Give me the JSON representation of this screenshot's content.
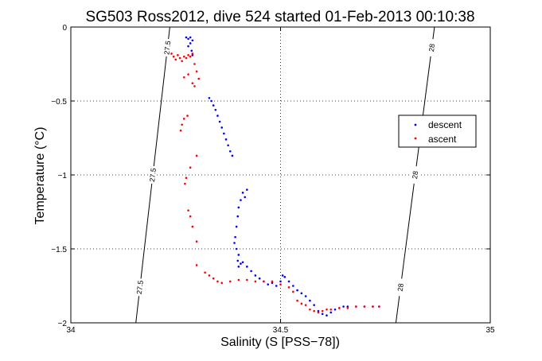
{
  "chart_data": {
    "type": "scatter",
    "title": "SG503 Ross2012, dive 524 started 01-Feb-2013 00:10:38",
    "xlabel": "Salinity (S [PSS−78])",
    "ylabel": "Temperature (°C)",
    "xlim": [
      34,
      35
    ],
    "ylim": [
      -2,
      0
    ],
    "y_reversed": false,
    "grid": true,
    "x_ticks": [
      34,
      34.5,
      35
    ],
    "x_tick_labels": [
      "34",
      "34.5",
      "35"
    ],
    "y_ticks": [
      0,
      -0.5,
      -1,
      -1.5,
      -2
    ],
    "y_tick_labels": [
      "0",
      "−0.5",
      "−1",
      "−1.5",
      "−2"
    ],
    "legend": {
      "position": "right",
      "entries": [
        "descent",
        "ascent"
      ]
    },
    "series": [
      {
        "name": "descent",
        "color": "#0000ff",
        "points": [
          [
            34.275,
            -0.07
          ],
          [
            34.28,
            -0.08
          ],
          [
            34.285,
            -0.07
          ],
          [
            34.29,
            -0.09
          ],
          [
            34.285,
            -0.11
          ],
          [
            34.28,
            -0.13
          ],
          [
            34.288,
            -0.16
          ],
          [
            34.29,
            -0.19
          ],
          [
            34.33,
            -0.48
          ],
          [
            34.335,
            -0.5
          ],
          [
            34.34,
            -0.53
          ],
          [
            34.345,
            -0.56
          ],
          [
            34.35,
            -0.6
          ],
          [
            34.355,
            -0.64
          ],
          [
            34.36,
            -0.68
          ],
          [
            34.365,
            -0.72
          ],
          [
            34.37,
            -0.76
          ],
          [
            34.375,
            -0.8
          ],
          [
            34.38,
            -0.84
          ],
          [
            34.385,
            -0.87
          ],
          [
            34.42,
            -1.1
          ],
          [
            34.415,
            -1.15
          ],
          [
            34.41,
            -1.12
          ],
          [
            34.405,
            -1.17
          ],
          [
            34.4,
            -1.22
          ],
          [
            34.398,
            -1.28
          ],
          [
            34.395,
            -1.35
          ],
          [
            34.392,
            -1.42
          ],
          [
            34.39,
            -1.46
          ],
          [
            34.395,
            -1.5
          ],
          [
            34.4,
            -1.54
          ],
          [
            34.398,
            -1.58
          ],
          [
            34.4,
            -1.62
          ],
          [
            34.405,
            -1.6
          ],
          [
            34.41,
            -1.59
          ],
          [
            34.42,
            -1.62
          ],
          [
            34.43,
            -1.65
          ],
          [
            34.44,
            -1.68
          ],
          [
            34.45,
            -1.7
          ],
          [
            34.46,
            -1.72
          ],
          [
            34.47,
            -1.74
          ],
          [
            34.48,
            -1.73
          ],
          [
            34.49,
            -1.75
          ],
          [
            34.5,
            -1.72
          ],
          [
            34.505,
            -1.68
          ],
          [
            34.51,
            -1.69
          ],
          [
            34.52,
            -1.72
          ],
          [
            34.53,
            -1.75
          ],
          [
            34.54,
            -1.78
          ],
          [
            34.55,
            -1.8
          ],
          [
            34.56,
            -1.82
          ],
          [
            34.57,
            -1.85
          ],
          [
            34.58,
            -1.88
          ],
          [
            34.59,
            -1.92
          ],
          [
            34.6,
            -1.94
          ],
          [
            34.61,
            -1.95
          ],
          [
            34.62,
            -1.93
          ],
          [
            34.63,
            -1.91
          ],
          [
            34.64,
            -1.9
          ],
          [
            34.65,
            -1.89
          ],
          [
            34.66,
            -1.89
          ],
          [
            34.68,
            -1.89
          ],
          [
            34.7,
            -1.89
          ],
          [
            34.72,
            -1.89
          ],
          [
            34.735,
            -1.89
          ]
        ]
      },
      {
        "name": "ascent",
        "color": "#ff0000",
        "points": [
          [
            34.24,
            -0.18
          ],
          [
            34.245,
            -0.2
          ],
          [
            34.25,
            -0.22
          ],
          [
            34.255,
            -0.19
          ],
          [
            34.26,
            -0.21
          ],
          [
            34.265,
            -0.23
          ],
          [
            34.27,
            -0.2
          ],
          [
            34.275,
            -0.21
          ],
          [
            34.28,
            -0.19
          ],
          [
            34.285,
            -0.2
          ],
          [
            34.29,
            -0.18
          ],
          [
            34.295,
            -0.25
          ],
          [
            34.3,
            -0.3
          ],
          [
            34.305,
            -0.35
          ],
          [
            34.295,
            -0.4
          ],
          [
            34.29,
            -0.38
          ],
          [
            34.28,
            -0.32
          ],
          [
            34.27,
            -0.34
          ],
          [
            34.278,
            -0.6
          ],
          [
            34.27,
            -0.62
          ],
          [
            34.265,
            -0.66
          ],
          [
            34.262,
            -0.7
          ],
          [
            34.3,
            -0.87
          ],
          [
            34.285,
            -0.95
          ],
          [
            34.275,
            -1.02
          ],
          [
            34.272,
            -1.06
          ],
          [
            34.28,
            -1.24
          ],
          [
            34.285,
            -1.28
          ],
          [
            34.29,
            -1.35
          ],
          [
            34.3,
            -1.45
          ],
          [
            34.3,
            -1.61
          ],
          [
            34.32,
            -1.66
          ],
          [
            34.33,
            -1.68
          ],
          [
            34.34,
            -1.7
          ],
          [
            34.35,
            -1.72
          ],
          [
            34.36,
            -1.73
          ],
          [
            34.38,
            -1.72
          ],
          [
            34.4,
            -1.71
          ],
          [
            34.42,
            -1.71
          ],
          [
            34.44,
            -1.72
          ],
          [
            34.46,
            -1.72
          ],
          [
            34.48,
            -1.72
          ],
          [
            34.5,
            -1.74
          ],
          [
            34.52,
            -1.76
          ],
          [
            34.53,
            -1.79
          ],
          [
            34.54,
            -1.85
          ],
          [
            34.55,
            -1.87
          ],
          [
            34.56,
            -1.88
          ],
          [
            34.57,
            -1.91
          ],
          [
            34.58,
            -1.92
          ],
          [
            34.59,
            -1.93
          ],
          [
            34.6,
            -1.92
          ],
          [
            34.61,
            -1.91
          ],
          [
            34.62,
            -1.91
          ],
          [
            34.64,
            -1.9
          ],
          [
            34.66,
            -1.9
          ],
          [
            34.68,
            -1.89
          ],
          [
            34.7,
            -1.89
          ],
          [
            34.72,
            -1.89
          ],
          [
            34.735,
            -1.89
          ]
        ]
      }
    ],
    "isopycnals": [
      {
        "label": "27.5",
        "line": [
          [
            34.155,
            -2
          ],
          [
            34.236,
            0
          ]
        ]
      },
      {
        "label": "28",
        "line": [
          [
            34.775,
            -2
          ],
          [
            34.867,
            0
          ]
        ]
      }
    ]
  }
}
